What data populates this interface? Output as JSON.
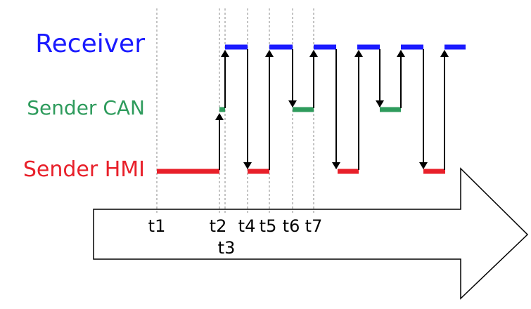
{
  "lanes": {
    "receiver": "Receiver",
    "sender_can": "Sender CAN",
    "sender_hmi": "Sender HMI"
  },
  "time_labels": [
    "t1",
    "t2",
    "t3",
    "t4",
    "t5",
    "t6",
    "t7"
  ]
}
